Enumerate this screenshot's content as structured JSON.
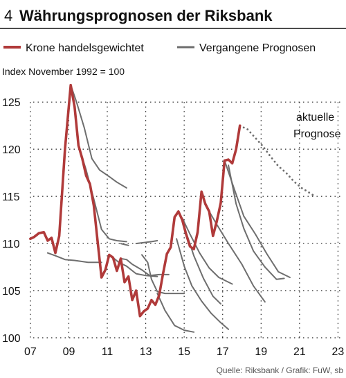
{
  "header": {
    "number": "4",
    "title": "Währungsprognosen der Riksbank"
  },
  "source": "Quelle: Riksbank / Grafik: FuW, sb",
  "colors": {
    "krone": "#b03a3a",
    "forecast": "#6e6e6e",
    "grid": "#222222"
  },
  "chart_data": {
    "type": "line",
    "ylabel": "Index November 1992 = 100",
    "xlim": [
      2006.5,
      2023.2
    ],
    "ylim": [
      100,
      127
    ],
    "y_ticks": [
      100,
      105,
      110,
      115,
      120,
      125
    ],
    "x_ticks": [
      2007,
      2009,
      2011,
      2013,
      2015,
      2017,
      2019,
      2021,
      2023
    ],
    "x_tick_labels": [
      "07",
      "09",
      "11",
      "13",
      "15",
      "17",
      "19",
      "21",
      "23"
    ],
    "legend": [
      "Krone handelsgewichtet",
      "Vergangene Prognosen"
    ],
    "annotation": [
      "aktuelle",
      "Prognose"
    ],
    "series": [
      {
        "name": "Krone handelsgewichtet",
        "role": "actual",
        "points": [
          [
            2007.0,
            110.5
          ],
          [
            2007.2,
            110.7
          ],
          [
            2007.45,
            111.1
          ],
          [
            2007.7,
            111.2
          ],
          [
            2007.9,
            110.3
          ],
          [
            2008.1,
            110.6
          ],
          [
            2008.3,
            109.0
          ],
          [
            2008.5,
            110.8
          ],
          [
            2008.8,
            120.0
          ],
          [
            2009.1,
            126.8
          ],
          [
            2009.3,
            124.5
          ],
          [
            2009.5,
            120.4
          ],
          [
            2009.7,
            119.0
          ],
          [
            2009.9,
            117.2
          ],
          [
            2010.1,
            116.3
          ],
          [
            2010.3,
            114.0
          ],
          [
            2010.5,
            110.2
          ],
          [
            2010.7,
            106.4
          ],
          [
            2010.9,
            107.2
          ],
          [
            2011.1,
            108.8
          ],
          [
            2011.3,
            108.5
          ],
          [
            2011.5,
            107.1
          ],
          [
            2011.7,
            108.4
          ],
          [
            2011.9,
            105.9
          ],
          [
            2012.1,
            106.5
          ],
          [
            2012.3,
            104.0
          ],
          [
            2012.5,
            105.0
          ],
          [
            2012.7,
            102.3
          ],
          [
            2012.9,
            102.8
          ],
          [
            2013.1,
            103.1
          ],
          [
            2013.3,
            104.0
          ],
          [
            2013.5,
            103.5
          ],
          [
            2013.7,
            104.5
          ],
          [
            2013.9,
            106.8
          ],
          [
            2014.1,
            108.9
          ],
          [
            2014.3,
            109.6
          ],
          [
            2014.5,
            112.8
          ],
          [
            2014.7,
            113.4
          ],
          [
            2014.9,
            112.5
          ],
          [
            2015.1,
            111.0
          ],
          [
            2015.3,
            109.7
          ],
          [
            2015.5,
            109.4
          ],
          [
            2015.7,
            111.2
          ],
          [
            2015.9,
            115.5
          ],
          [
            2016.1,
            114.2
          ],
          [
            2016.3,
            113.4
          ],
          [
            2016.5,
            110.8
          ],
          [
            2016.7,
            112.4
          ],
          [
            2016.9,
            114.3
          ],
          [
            2017.1,
            118.8
          ],
          [
            2017.3,
            118.9
          ],
          [
            2017.5,
            118.5
          ],
          [
            2017.7,
            120.0
          ],
          [
            2017.9,
            122.5
          ]
        ]
      },
      {
        "name": "aktuelle Prognose",
        "role": "current_forecast",
        "points": [
          [
            2017.9,
            122.5
          ],
          [
            2018.3,
            122.1
          ],
          [
            2018.7,
            121.2
          ],
          [
            2019.1,
            120.3
          ],
          [
            2019.5,
            119.2
          ],
          [
            2019.9,
            118.2
          ],
          [
            2020.3,
            117.5
          ],
          [
            2020.7,
            116.6
          ],
          [
            2021.1,
            115.9
          ],
          [
            2021.5,
            115.4
          ],
          [
            2021.8,
            115.0
          ]
        ]
      },
      {
        "name": "Vergangene Prognosen",
        "role": "past_forecast",
        "points": [
          [
            2009.1,
            126.8
          ],
          [
            2009.4,
            125.0
          ],
          [
            2009.8,
            122.3
          ],
          [
            2010.2,
            119.0
          ],
          [
            2010.6,
            117.8
          ],
          [
            2011.1,
            117.1
          ],
          [
            2011.5,
            116.5
          ],
          [
            2012.0,
            115.9
          ]
        ]
      },
      {
        "name": "Vergangene Prognosen",
        "role": "past_forecast",
        "points": [
          [
            2009.5,
            120.4
          ],
          [
            2009.9,
            117.8
          ],
          [
            2010.3,
            114.7
          ],
          [
            2010.7,
            111.5
          ],
          [
            2011.1,
            110.5
          ],
          [
            2011.5,
            110.3
          ],
          [
            2012.0,
            110.2
          ]
        ]
      },
      {
        "name": "Vergangene Prognosen",
        "role": "past_forecast",
        "points": [
          [
            2007.9,
            109.0
          ],
          [
            2008.3,
            108.7
          ],
          [
            2008.8,
            108.3
          ],
          [
            2009.3,
            108.2
          ],
          [
            2010.0,
            108.0
          ],
          [
            2010.7,
            108.0
          ]
        ]
      },
      {
        "name": "Vergangene Prognosen",
        "role": "past_forecast",
        "points": [
          [
            2011.3,
            108.5
          ],
          [
            2011.6,
            108.0
          ],
          [
            2012.0,
            107.6
          ],
          [
            2012.5,
            106.8
          ],
          [
            2013.0,
            106.6
          ],
          [
            2013.6,
            106.5
          ]
        ]
      },
      {
        "name": "Vergangene Prognosen",
        "role": "past_forecast",
        "points": [
          [
            2011.7,
            108.4
          ],
          [
            2012.0,
            108.3
          ],
          [
            2012.3,
            107.8
          ],
          [
            2012.8,
            107.2
          ],
          [
            2013.2,
            106.6
          ],
          [
            2013.7,
            106.7
          ],
          [
            2014.2,
            106.7
          ]
        ]
      },
      {
        "name": "Vergangene Prognosen",
        "role": "past_forecast",
        "points": [
          [
            2012.5,
            110.0
          ],
          [
            2012.9,
            110.1
          ],
          [
            2013.3,
            110.2
          ],
          [
            2013.6,
            110.3
          ]
        ]
      },
      {
        "name": "Vergangene Prognosen",
        "role": "past_forecast",
        "points": [
          [
            2011.7,
            110.0
          ],
          [
            2012.1,
            109.8
          ]
        ]
      },
      {
        "name": "Vergangene Prognosen",
        "role": "past_forecast",
        "points": [
          [
            2012.8,
            108.8
          ],
          [
            2013.1,
            108.0
          ],
          [
            2013.3,
            106.2
          ],
          [
            2013.6,
            104.9
          ],
          [
            2014.0,
            104.7
          ],
          [
            2014.5,
            104.7
          ],
          [
            2015.0,
            104.7
          ]
        ]
      },
      {
        "name": "Vergangene Prognosen",
        "role": "past_forecast",
        "points": [
          [
            2013.6,
            104.7
          ],
          [
            2014.0,
            102.9
          ],
          [
            2014.5,
            101.3
          ],
          [
            2015.0,
            100.8
          ],
          [
            2015.5,
            100.6
          ]
        ]
      },
      {
        "name": "Vergangene Prognosen",
        "role": "past_forecast",
        "points": [
          [
            2014.9,
            112.7
          ],
          [
            2015.3,
            111.0
          ],
          [
            2015.8,
            109.0
          ],
          [
            2016.3,
            107.4
          ],
          [
            2016.8,
            106.4
          ],
          [
            2017.5,
            105.7
          ]
        ]
      },
      {
        "name": "Vergangene Prognosen",
        "role": "past_forecast",
        "points": [
          [
            2015.1,
            111.2
          ],
          [
            2015.5,
            108.7
          ],
          [
            2016.0,
            106.3
          ],
          [
            2016.5,
            104.4
          ],
          [
            2016.9,
            103.6
          ]
        ]
      },
      {
        "name": "Vergangene Prognosen",
        "role": "past_forecast",
        "points": [
          [
            2014.6,
            110.5
          ],
          [
            2015.0,
            107.6
          ],
          [
            2015.4,
            105.5
          ],
          [
            2015.9,
            103.9
          ],
          [
            2016.4,
            102.6
          ],
          [
            2016.9,
            101.6
          ],
          [
            2017.3,
            100.9
          ]
        ]
      },
      {
        "name": "Vergangene Prognosen",
        "role": "past_forecast",
        "points": [
          [
            2016.3,
            113.4
          ],
          [
            2016.7,
            112.0
          ],
          [
            2017.3,
            110.0
          ],
          [
            2018.0,
            107.8
          ],
          [
            2018.6,
            105.5
          ],
          [
            2019.2,
            103.8
          ]
        ]
      },
      {
        "name": "Vergangene Prognosen",
        "role": "past_forecast",
        "points": [
          [
            2017.3,
            118.3
          ],
          [
            2017.7,
            114.2
          ],
          [
            2018.1,
            111.6
          ],
          [
            2018.6,
            109.2
          ],
          [
            2019.2,
            107.5
          ],
          [
            2019.8,
            106.2
          ],
          [
            2020.2,
            106.3
          ]
        ]
      },
      {
        "name": "Vergangene Prognosen",
        "role": "past_forecast",
        "points": [
          [
            2017.1,
            118.8
          ],
          [
            2017.6,
            115.8
          ],
          [
            2018.1,
            112.9
          ],
          [
            2018.7,
            111.0
          ],
          [
            2019.3,
            108.9
          ],
          [
            2019.9,
            107.0
          ],
          [
            2020.5,
            106.4
          ]
        ]
      }
    ]
  }
}
